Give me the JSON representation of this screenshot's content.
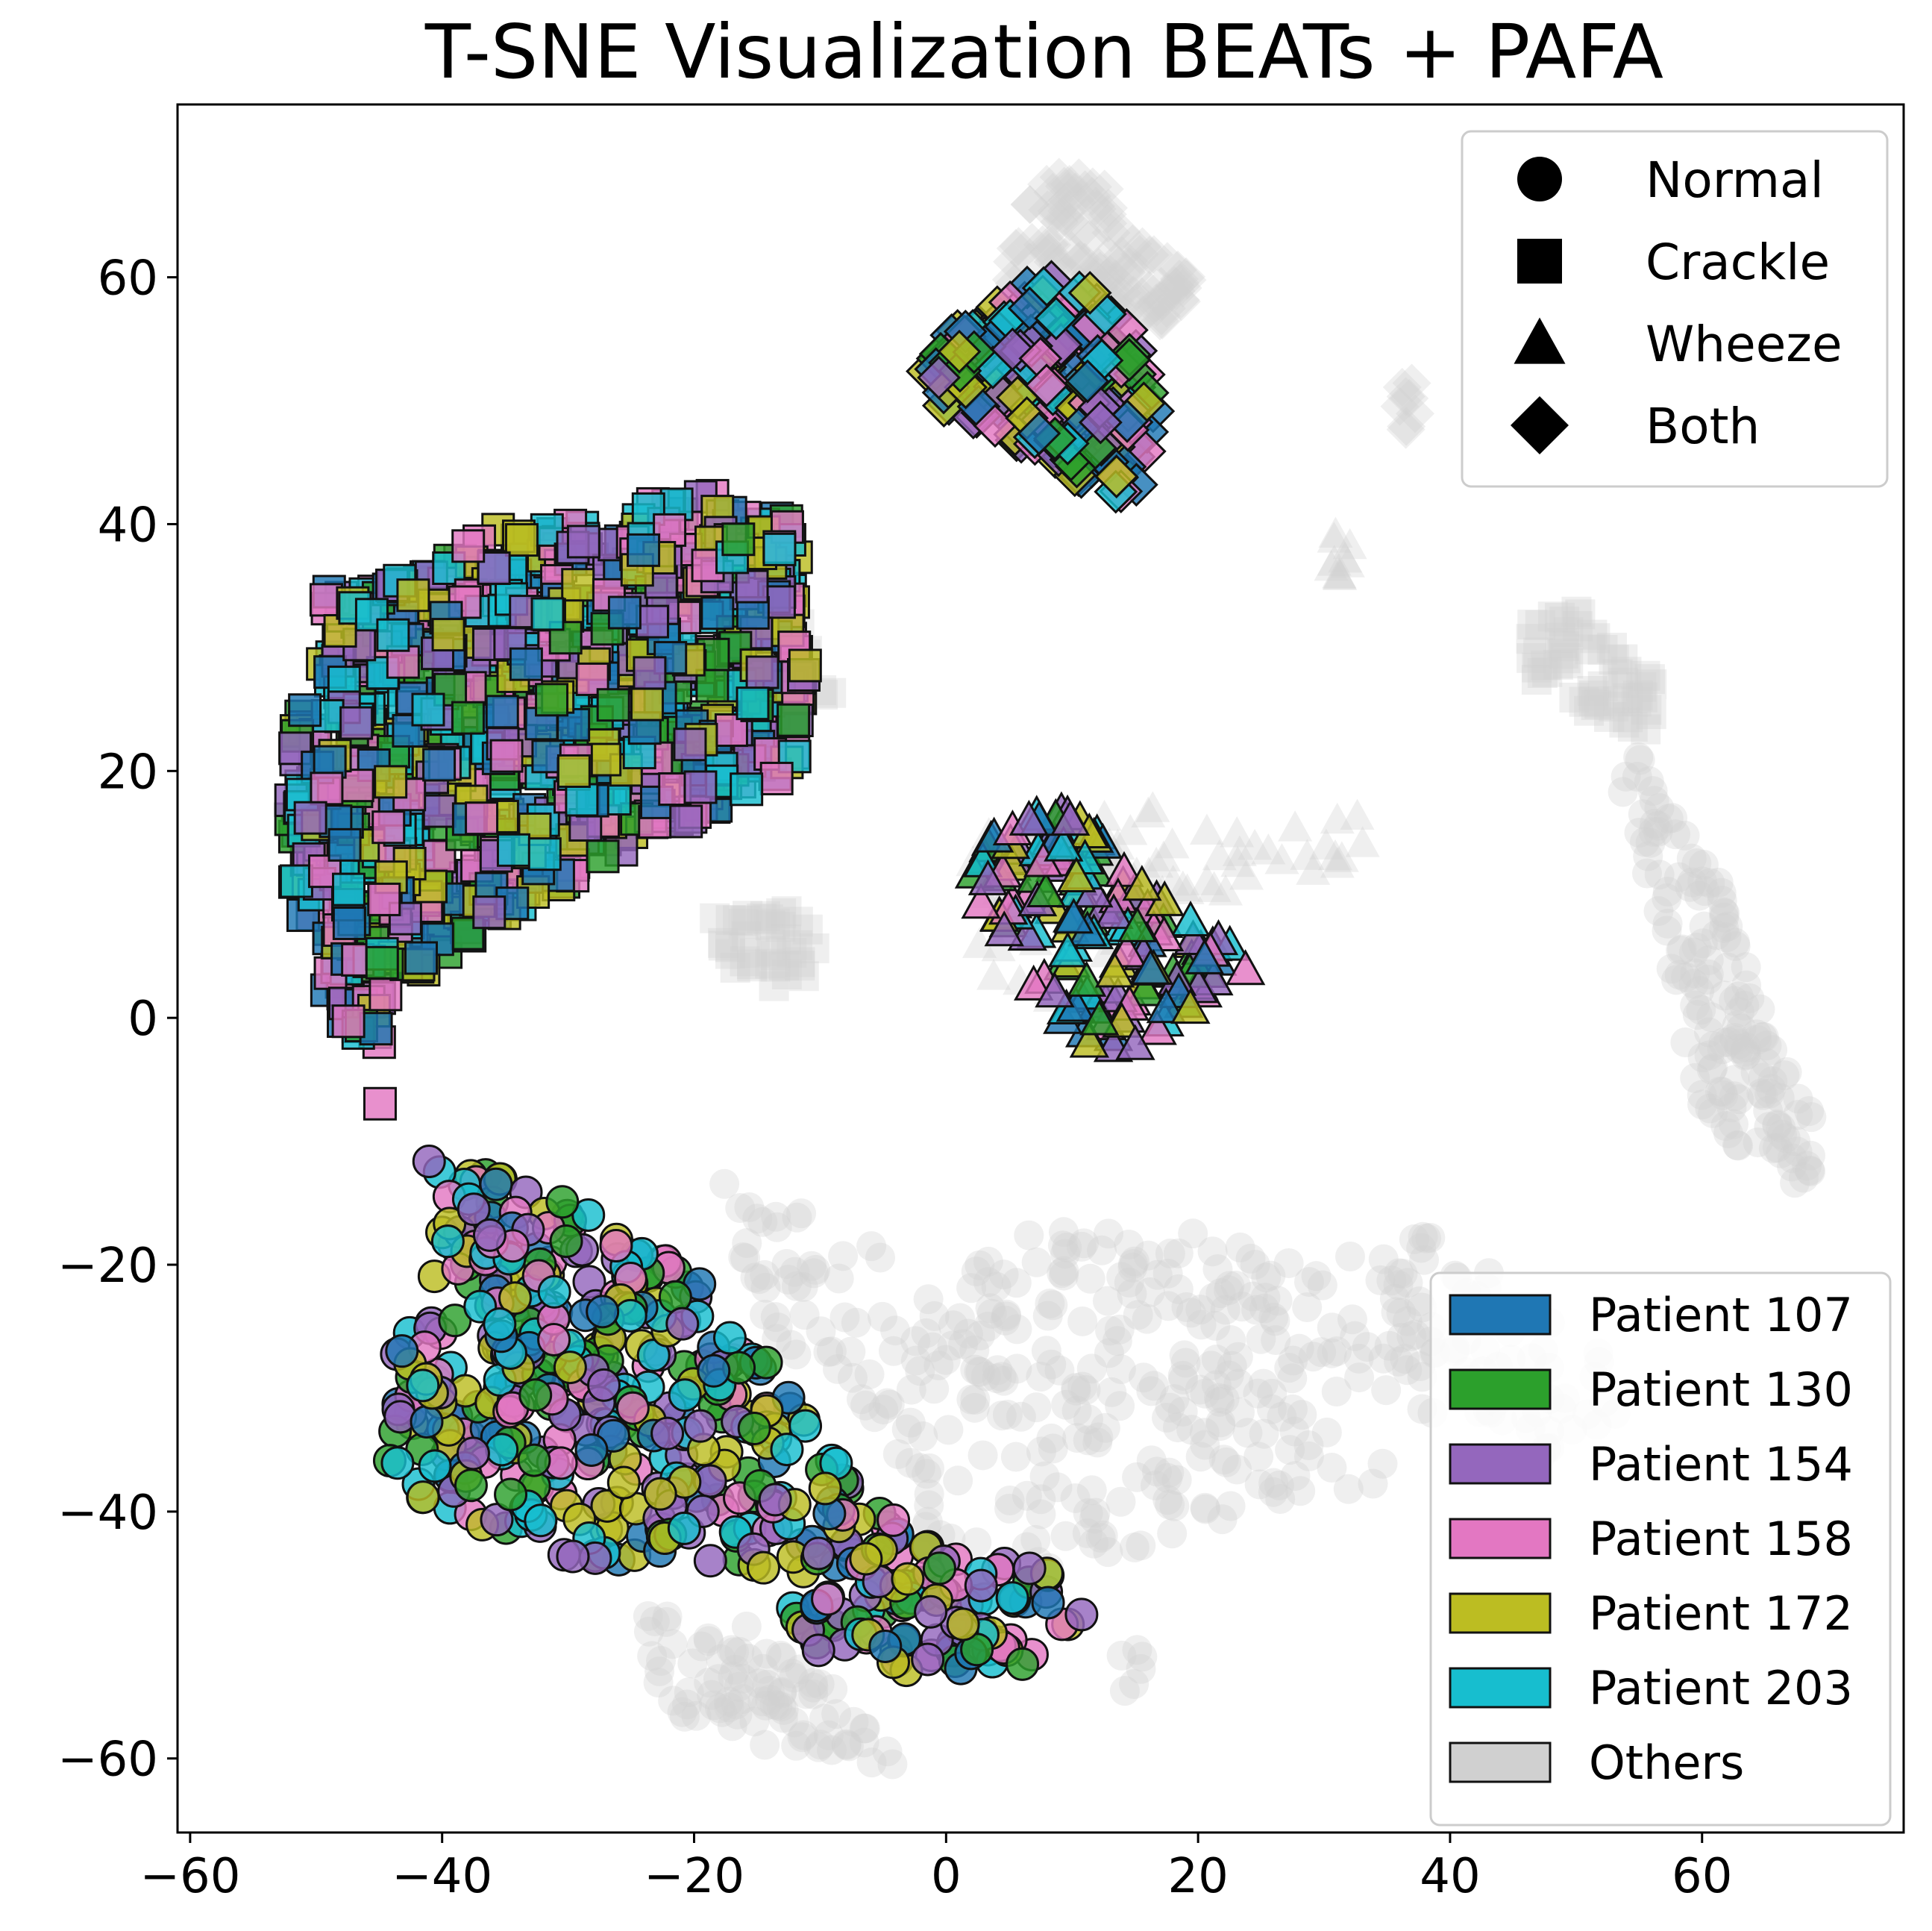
{
  "chart_data": {
    "type": "scatter",
    "title": "T-SNE Visualization BEATs + PAFA",
    "xlabel": "",
    "ylabel": "",
    "xlim": [
      -61,
      76
    ],
    "ylim": [
      -66,
      74
    ],
    "xticks": [
      -60,
      -40,
      -20,
      0,
      20,
      40,
      60
    ],
    "yticks": [
      -60,
      -40,
      -20,
      0,
      20,
      40,
      60
    ],
    "xtick_labels": [
      "−60",
      "−40",
      "−20",
      "0",
      "20",
      "40",
      "60"
    ],
    "ytick_labels": [
      "−60",
      "−40",
      "−20",
      "0",
      "20",
      "40",
      "60"
    ],
    "grid": false,
    "shape_legend": {
      "placement": "top-right",
      "items": [
        {
          "label": "Normal",
          "marker": "circle"
        },
        {
          "label": "Crackle",
          "marker": "square"
        },
        {
          "label": "Wheeze",
          "marker": "triangle"
        },
        {
          "label": "Both",
          "marker": "diamond"
        }
      ]
    },
    "color_legend": {
      "placement": "bottom-right",
      "items": [
        {
          "label": "Patient 107",
          "color": "#1f77b4"
        },
        {
          "label": "Patient 130",
          "color": "#2ca02c"
        },
        {
          "label": "Patient 154",
          "color": "#9467bd"
        },
        {
          "label": "Patient 158",
          "color": "#e377c2"
        },
        {
          "label": "Patient 172",
          "color": "#bcbd22"
        },
        {
          "label": "Patient 203",
          "color": "#17becf"
        },
        {
          "label": "Others",
          "color": "#d0d0d0"
        }
      ]
    },
    "clusters": [
      {
        "class": "Crackle",
        "marker": "square",
        "group": "patients",
        "polygon": [
          [
            -49,
            35
          ],
          [
            -42,
            36
          ],
          [
            -35,
            40
          ],
          [
            -28,
            40
          ],
          [
            -20,
            43
          ],
          [
            -12,
            40
          ],
          [
            -11,
            30
          ],
          [
            -12,
            20
          ],
          [
            -18,
            17
          ],
          [
            -27,
            13
          ],
          [
            -35,
            8
          ],
          [
            -40,
            5
          ],
          [
            -44,
            2
          ],
          [
            -45,
            -4
          ],
          [
            -44,
            -11
          ],
          [
            -47,
            -2
          ],
          [
            -50,
            3
          ],
          [
            -52,
            12
          ],
          [
            -52,
            22
          ],
          [
            -50,
            30
          ]
        ],
        "approx_count": 1050
      },
      {
        "class": "Both",
        "marker": "diamond",
        "group": "patients",
        "polygon": [
          [
            -2,
            53
          ],
          [
            3,
            58
          ],
          [
            8,
            60
          ],
          [
            12,
            59
          ],
          [
            15,
            55
          ],
          [
            17,
            50
          ],
          [
            16,
            44
          ],
          [
            14,
            42
          ],
          [
            10,
            44
          ],
          [
            5,
            47
          ],
          [
            0,
            49
          ],
          [
            -2,
            51
          ]
        ],
        "approx_count": 230
      },
      {
        "class": "Wheeze",
        "marker": "triangle",
        "group": "patients",
        "polygon": [
          [
            2,
            15
          ],
          [
            5,
            17
          ],
          [
            10,
            17
          ],
          [
            14,
            13
          ],
          [
            18,
            9
          ],
          [
            22,
            7
          ],
          [
            24,
            4
          ],
          [
            21,
            1
          ],
          [
            16,
            -2
          ],
          [
            12,
            -3
          ],
          [
            8,
            1
          ],
          [
            5,
            5
          ],
          [
            2,
            10
          ]
        ],
        "approx_count": 160
      },
      {
        "class": "Normal",
        "marker": "circle",
        "group": "patients",
        "polygon": [
          [
            -42,
            -10
          ],
          [
            -36,
            -12
          ],
          [
            -30,
            -15
          ],
          [
            -25,
            -18
          ],
          [
            -18,
            -22
          ],
          [
            -14,
            -27
          ],
          [
            -10,
            -34
          ],
          [
            -6,
            -39
          ],
          [
            -2,
            -42
          ],
          [
            3,
            -43
          ],
          [
            8,
            -45
          ],
          [
            11,
            -48
          ],
          [
            9,
            -52
          ],
          [
            3,
            -53
          ],
          [
            -4,
            -53
          ],
          [
            -10,
            -52
          ],
          [
            -14,
            -45
          ],
          [
            -20,
            -44
          ],
          [
            -28,
            -44
          ],
          [
            -36,
            -43
          ],
          [
            -44,
            -37
          ],
          [
            -45,
            -30
          ],
          [
            -41,
            -22
          ],
          [
            -40,
            -15
          ]
        ],
        "approx_count": 540
      },
      {
        "class": "Both",
        "marker": "diamond",
        "group": "others",
        "polygon": [
          [
            4,
            58
          ],
          [
            6,
            66
          ],
          [
            9,
            69
          ],
          [
            12,
            68
          ],
          [
            15,
            64
          ],
          [
            18,
            61
          ],
          [
            20,
            60
          ],
          [
            18,
            56
          ],
          [
            14,
            57
          ],
          [
            10,
            58
          ],
          [
            6,
            56
          ]
        ],
        "approx_count": 120
      },
      {
        "class": "Both",
        "marker": "diamond",
        "group": "others",
        "polygon": [
          [
            35,
            50
          ],
          [
            37,
            52
          ],
          [
            38,
            49
          ],
          [
            36,
            47
          ]
        ],
        "approx_count": 8
      },
      {
        "class": "Wheeze",
        "marker": "triangle",
        "group": "others",
        "polygon": [
          [
            30,
            37
          ],
          [
            31,
            40
          ],
          [
            33,
            38
          ],
          [
            32,
            35
          ]
        ],
        "approx_count": 10
      },
      {
        "class": "Wheeze",
        "marker": "triangle",
        "group": "others",
        "polygon": [
          [
            1,
            7
          ],
          [
            2,
            15
          ],
          [
            10,
            17
          ],
          [
            20,
            17
          ],
          [
            30,
            16
          ],
          [
            36,
            18
          ],
          [
            34,
            13
          ],
          [
            26,
            11
          ],
          [
            20,
            8
          ],
          [
            16,
            3
          ],
          [
            10,
            1
          ],
          [
            4,
            3
          ]
        ],
        "approx_count": 90
      },
      {
        "class": "Crackle",
        "marker": "square",
        "group": "others",
        "polygon": [
          [
            -19,
            8
          ],
          [
            -13,
            9
          ],
          [
            -10,
            7
          ],
          [
            -11,
            3
          ],
          [
            -14,
            2
          ],
          [
            -18,
            5
          ]
        ],
        "approx_count": 40
      },
      {
        "class": "Crackle",
        "marker": "square",
        "group": "others",
        "polygon": [
          [
            -15,
            35
          ],
          [
            -9,
            30
          ],
          [
            -9,
            25
          ],
          [
            -13,
            22
          ],
          [
            -16,
            30
          ]
        ],
        "approx_count": 25
      },
      {
        "class": "Crackle",
        "marker": "square",
        "group": "others",
        "polygon": [
          [
            46,
            32
          ],
          [
            50,
            33
          ],
          [
            55,
            30
          ],
          [
            57,
            25
          ],
          [
            55,
            22
          ],
          [
            50,
            25
          ],
          [
            46,
            28
          ]
        ],
        "approx_count": 60
      },
      {
        "class": "Normal",
        "marker": "circle",
        "group": "others",
        "polygon": [
          [
            55,
            22
          ],
          [
            58,
            16
          ],
          [
            62,
            10
          ],
          [
            64,
            3
          ],
          [
            66,
            -3
          ],
          [
            69,
            -8
          ],
          [
            70,
            -12
          ],
          [
            68,
            -14
          ],
          [
            63,
            -11
          ],
          [
            60,
            -7
          ],
          [
            58,
            -1
          ],
          [
            57,
            6
          ],
          [
            55,
            14
          ],
          [
            53,
            20
          ]
        ],
        "approx_count": 160
      },
      {
        "class": "Normal",
        "marker": "circle",
        "group": "others",
        "polygon": [
          [
            -18,
            -12
          ],
          [
            -12,
            -15
          ],
          [
            -5,
            -19
          ],
          [
            0,
            -22
          ],
          [
            5,
            -17
          ],
          [
            13,
            -16
          ],
          [
            22,
            -18
          ],
          [
            30,
            -20
          ],
          [
            37,
            -17
          ],
          [
            44,
            -21
          ],
          [
            52,
            -27
          ],
          [
            54,
            -35
          ],
          [
            48,
            -36
          ],
          [
            40,
            -33
          ],
          [
            34,
            -38
          ],
          [
            26,
            -40
          ],
          [
            18,
            -42
          ],
          [
            12,
            -44
          ],
          [
            6,
            -46
          ],
          [
            0,
            -43
          ],
          [
            -3,
            -40
          ],
          [
            -5,
            -34
          ],
          [
            -8,
            -30
          ],
          [
            -13,
            -27
          ],
          [
            -16,
            -21
          ]
        ],
        "approx_count": 420
      },
      {
        "class": "Normal",
        "marker": "circle",
        "group": "others",
        "polygon": [
          [
            -24,
            -48
          ],
          [
            -16,
            -49
          ],
          [
            -10,
            -53
          ],
          [
            -5,
            -57
          ],
          [
            -1,
            -58
          ],
          [
            -3,
            -61
          ],
          [
            -10,
            -60
          ],
          [
            -18,
            -58
          ],
          [
            -24,
            -55
          ]
        ],
        "approx_count": 90
      },
      {
        "class": "Normal",
        "marker": "circle",
        "group": "others",
        "polygon": [
          [
            12,
            -53
          ],
          [
            15,
            -50
          ],
          [
            16,
            -53
          ],
          [
            14,
            -55
          ]
        ],
        "approx_count": 6
      }
    ],
    "annotations": []
  }
}
